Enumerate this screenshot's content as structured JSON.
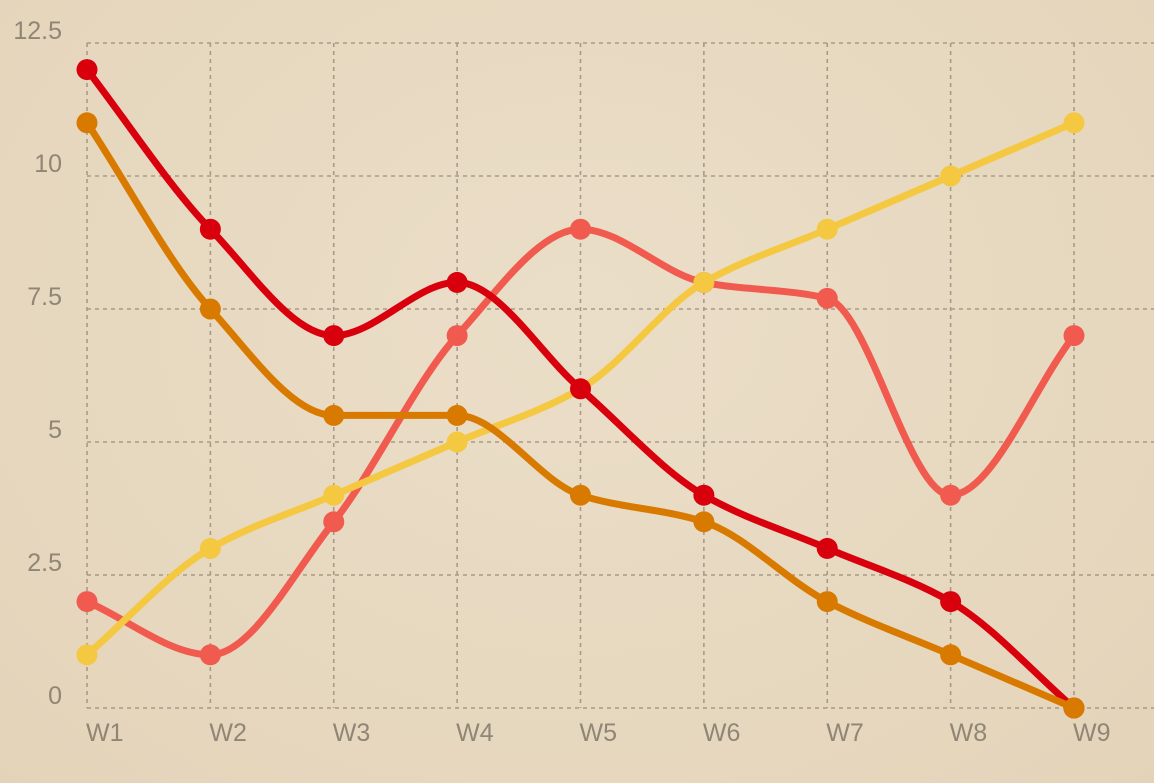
{
  "chart_data": {
    "type": "line",
    "smooth": true,
    "grid": true,
    "legend": "none",
    "x": [
      "W1",
      "W2",
      "W3",
      "W4",
      "W5",
      "W6",
      "W7",
      "W8",
      "W9"
    ],
    "ylim": [
      0,
      12.5
    ],
    "yticks": [
      "0",
      "2.5",
      "5",
      "7.5",
      "10",
      "12.5"
    ],
    "series": [
      {
        "color": "#f05a4f",
        "values": [
          2,
          1,
          3.5,
          7,
          9,
          8,
          7.7,
          4,
          7
        ]
      },
      {
        "color": "#f5c842",
        "values": [
          1,
          3,
          4,
          5,
          6,
          8,
          9,
          10,
          11
        ]
      },
      {
        "color": "#d9000e",
        "values": [
          12,
          9,
          7,
          8,
          6,
          4,
          3,
          2,
          0
        ]
      },
      {
        "color": "#d97a00",
        "values": [
          11,
          7.5,
          5.5,
          5.5,
          4,
          3.5,
          2,
          1,
          0
        ]
      }
    ]
  }
}
